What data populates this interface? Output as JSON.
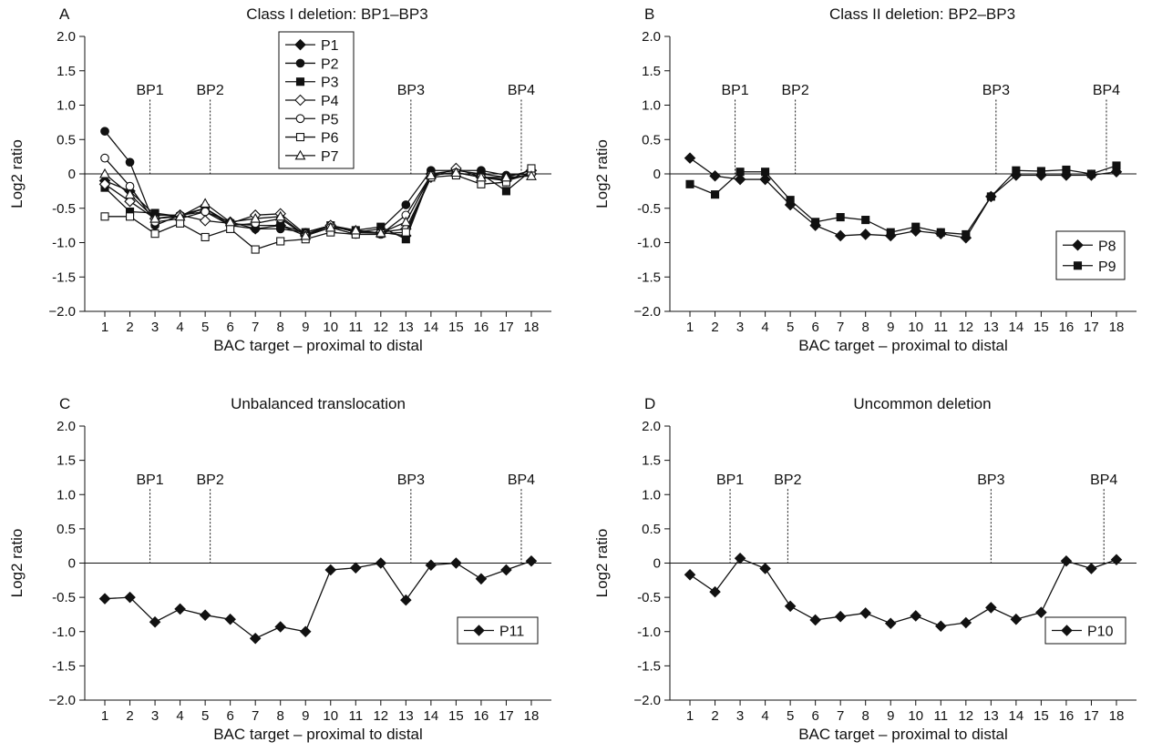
{
  "panels": [
    {
      "letter": "A",
      "title": "Class I deletion: BP1–BP3",
      "xlabel": "BAC target – proximal to distal",
      "ylabel": "Log2 ratio"
    },
    {
      "letter": "B",
      "title": "Class II deletion: BP2–BP3",
      "xlabel": "BAC target – proximal to distal",
      "ylabel": "Log2 ratio"
    },
    {
      "letter": "C",
      "title": "Unbalanced translocation",
      "xlabel": "BAC target – proximal to distal",
      "ylabel": "Log2 ratio"
    },
    {
      "letter": "D",
      "title": "Uncommon deletion",
      "xlabel": "BAC target – proximal to distal",
      "ylabel": "Log2 ratio"
    }
  ],
  "chart_data": [
    {
      "type": "line",
      "title": "Class I deletion: BP1–BP3",
      "xlabel": "BAC target – proximal to distal",
      "ylabel": "Log2 ratio",
      "x": [
        1,
        2,
        3,
        4,
        5,
        6,
        7,
        8,
        9,
        10,
        11,
        12,
        13,
        14,
        15,
        16,
        17,
        18
      ],
      "xlim": [
        0.2,
        18.8
      ],
      "ylim": [
        -2.0,
        2.0
      ],
      "y_ticks": [
        "2.0",
        "1.5",
        "1.0",
        "0.5",
        "0",
        "-0.5",
        "-1.0",
        "-1.5",
        "−2.0"
      ],
      "breakpoints": [
        {
          "label": "BP1",
          "x": 2.8
        },
        {
          "label": "BP2",
          "x": 5.2
        },
        {
          "label": "BP3",
          "x": 13.2
        },
        {
          "label": "BP4",
          "x": 17.6
        }
      ],
      "legend": "top-center",
      "series": [
        {
          "name": "P1",
          "marker": "diamond-filled",
          "values": [
            -0.1,
            -0.25,
            -0.6,
            -0.6,
            -0.55,
            -0.7,
            -0.8,
            -0.75,
            -0.9,
            -0.75,
            -0.85,
            -0.85,
            -0.9,
            0.0,
            0.05,
            0.0,
            -0.05,
            0.05
          ]
        },
        {
          "name": "P2",
          "marker": "circle-filled",
          "values": [
            0.62,
            0.17,
            -0.75,
            -0.6,
            -0.5,
            -0.75,
            -0.8,
            -0.8,
            -0.85,
            -0.75,
            -0.85,
            -0.8,
            -0.45,
            0.05,
            0.05,
            0.05,
            -0.02,
            0.0
          ]
        },
        {
          "name": "P3",
          "marker": "square-filled",
          "values": [
            -0.2,
            -0.55,
            -0.57,
            -0.62,
            -0.5,
            -0.72,
            -0.75,
            -0.75,
            -0.85,
            -0.75,
            -0.82,
            -0.77,
            -0.95,
            0.0,
            0.0,
            0.0,
            -0.25,
            0.05
          ]
        },
        {
          "name": "P4",
          "marker": "diamond-open",
          "values": [
            -0.15,
            -0.4,
            -0.65,
            -0.6,
            -0.68,
            -0.72,
            -0.6,
            -0.58,
            -0.88,
            -0.75,
            -0.85,
            -0.85,
            -0.8,
            -0.05,
            0.08,
            -0.05,
            -0.1,
            0.0
          ]
        },
        {
          "name": "P5",
          "marker": "circle-open",
          "values": [
            0.23,
            -0.18,
            -0.7,
            -0.65,
            -0.55,
            -0.75,
            -0.72,
            -0.65,
            -0.9,
            -0.78,
            -0.88,
            -0.88,
            -0.6,
            -0.02,
            0.02,
            -0.05,
            -0.08,
            0.0
          ]
        },
        {
          "name": "P6",
          "marker": "square-open",
          "values": [
            -0.62,
            -0.62,
            -0.87,
            -0.72,
            -0.92,
            -0.8,
            -1.1,
            -0.98,
            -0.95,
            -0.85,
            -0.88,
            -0.87,
            -0.85,
            -0.05,
            -0.02,
            -0.15,
            -0.12,
            0.08
          ]
        },
        {
          "name": "P7",
          "marker": "triangle-open",
          "values": [
            0.0,
            -0.3,
            -0.65,
            -0.62,
            -0.43,
            -0.7,
            -0.65,
            -0.62,
            -0.9,
            -0.78,
            -0.82,
            -0.86,
            -0.7,
            -0.02,
            0.02,
            -0.05,
            -0.05,
            -0.03
          ]
        }
      ]
    },
    {
      "type": "line",
      "title": "Class II deletion: BP2–BP3",
      "xlabel": "BAC target – proximal to distal",
      "ylabel": "Log2 ratio",
      "x": [
        1,
        2,
        3,
        4,
        5,
        6,
        7,
        8,
        9,
        10,
        11,
        12,
        13,
        14,
        15,
        16,
        17,
        18
      ],
      "xlim": [
        0.2,
        18.8
      ],
      "ylim": [
        -2.0,
        2.0
      ],
      "y_ticks": [
        "2.0",
        "1.5",
        "1.0",
        "0.5",
        "0",
        "-0.5",
        "-1.0",
        "-1.5",
        "−2.0"
      ],
      "breakpoints": [
        {
          "label": "BP1",
          "x": 2.8
        },
        {
          "label": "BP2",
          "x": 5.2
        },
        {
          "label": "BP3",
          "x": 13.2
        },
        {
          "label": "BP4",
          "x": 17.6
        }
      ],
      "legend": "bottom-right",
      "series": [
        {
          "name": "P8",
          "marker": "diamond-filled",
          "values": [
            0.23,
            -0.03,
            -0.08,
            -0.08,
            -0.45,
            -0.75,
            -0.9,
            -0.88,
            -0.9,
            -0.83,
            -0.87,
            -0.93,
            -0.33,
            -0.02,
            -0.02,
            -0.02,
            -0.02,
            0.03
          ]
        },
        {
          "name": "P9",
          "marker": "square-filled",
          "values": [
            -0.15,
            -0.3,
            0.03,
            0.03,
            -0.38,
            -0.7,
            -0.63,
            -0.67,
            -0.85,
            -0.77,
            -0.85,
            -0.88,
            -0.33,
            0.05,
            0.04,
            0.06,
            0.0,
            0.12
          ]
        }
      ]
    },
    {
      "type": "line",
      "title": "Unbalanced translocation",
      "xlabel": "BAC target – proximal to distal",
      "ylabel": "Log2 ratio",
      "x": [
        1,
        2,
        3,
        4,
        5,
        6,
        7,
        8,
        9,
        10,
        11,
        12,
        13,
        14,
        15,
        16,
        17,
        18
      ],
      "xlim": [
        0.2,
        18.8
      ],
      "ylim": [
        -2.0,
        2.0
      ],
      "y_ticks": [
        "2.0",
        "1.5",
        "1.0",
        "0.5",
        "0",
        "-0.5",
        "-1.0",
        "-1.5",
        "−2.0"
      ],
      "breakpoints": [
        {
          "label": "BP1",
          "x": 2.8
        },
        {
          "label": "BP2",
          "x": 5.2
        },
        {
          "label": "BP3",
          "x": 13.2
        },
        {
          "label": "BP4",
          "x": 17.6
        }
      ],
      "legend": "bottom-right",
      "series": [
        {
          "name": "P11",
          "marker": "diamond-filled",
          "values": [
            -0.52,
            -0.5,
            -0.86,
            -0.67,
            -0.76,
            -0.82,
            -1.1,
            -0.93,
            -1.0,
            -0.1,
            -0.07,
            0.0,
            -0.54,
            -0.03,
            0.0,
            -0.23,
            -0.1,
            0.03
          ]
        }
      ]
    },
    {
      "type": "line",
      "title": "Uncommon deletion",
      "xlabel": "BAC target – proximal to distal",
      "ylabel": "Log2 ratio",
      "x": [
        1,
        2,
        3,
        4,
        5,
        6,
        7,
        8,
        9,
        10,
        11,
        12,
        13,
        14,
        15,
        16,
        17,
        18
      ],
      "xlim": [
        0.2,
        18.8
      ],
      "ylim": [
        -2.0,
        2.0
      ],
      "y_ticks": [
        "2.0",
        "1.5",
        "1.0",
        "0.5",
        "0",
        "-0.5",
        "-1.0",
        "-1.5",
        "−2.0"
      ],
      "breakpoints": [
        {
          "label": "BP1",
          "x": 2.6
        },
        {
          "label": "BP2",
          "x": 4.9
        },
        {
          "label": "BP3",
          "x": 13.0
        },
        {
          "label": "BP4",
          "x": 17.5
        }
      ],
      "legend": "bottom-right",
      "series": [
        {
          "name": "P10",
          "marker": "diamond-filled",
          "values": [
            -0.17,
            -0.42,
            0.07,
            -0.08,
            -0.63,
            -0.83,
            -0.78,
            -0.73,
            -0.88,
            -0.77,
            -0.92,
            -0.87,
            -0.65,
            -0.82,
            -0.72,
            0.03,
            -0.08,
            0.05
          ]
        }
      ]
    }
  ]
}
